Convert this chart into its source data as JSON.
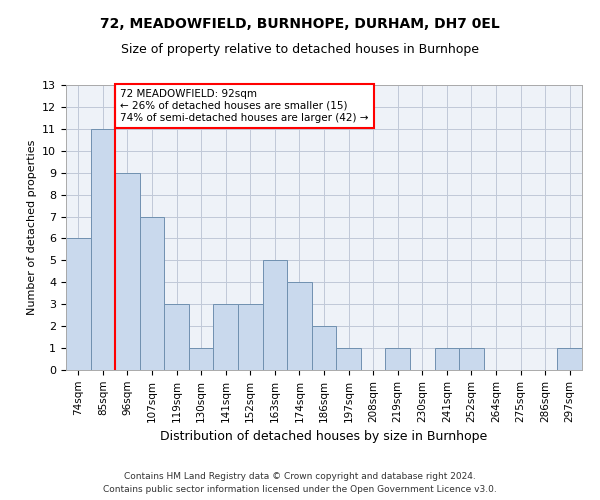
{
  "title1": "72, MEADOWFIELD, BURNHOPE, DURHAM, DH7 0EL",
  "title2": "Size of property relative to detached houses in Burnhope",
  "xlabel": "Distribution of detached houses by size in Burnhope",
  "ylabel": "Number of detached properties",
  "categories": [
    "74sqm",
    "85sqm",
    "96sqm",
    "107sqm",
    "119sqm",
    "130sqm",
    "141sqm",
    "152sqm",
    "163sqm",
    "174sqm",
    "186sqm",
    "197sqm",
    "208sqm",
    "219sqm",
    "230sqm",
    "241sqm",
    "252sqm",
    "264sqm",
    "275sqm",
    "286sqm",
    "297sqm"
  ],
  "values": [
    6,
    11,
    9,
    7,
    3,
    1,
    3,
    3,
    5,
    4,
    2,
    1,
    0,
    1,
    0,
    1,
    1,
    0,
    0,
    0,
    1
  ],
  "bar_color": "#c9d9ed",
  "bar_edge_color": "#7090b0",
  "red_line_x": 1.5,
  "annotation_text": "72 MEADOWFIELD: 92sqm\n← 26% of detached houses are smaller (15)\n74% of semi-detached houses are larger (42) →",
  "footer1": "Contains HM Land Registry data © Crown copyright and database right 2024.",
  "footer2": "Contains public sector information licensed under the Open Government Licence v3.0.",
  "ylim": [
    0,
    13
  ],
  "yticks": [
    0,
    1,
    2,
    3,
    4,
    5,
    6,
    7,
    8,
    9,
    10,
    11,
    12,
    13
  ],
  "grid_color": "#c0c8d8",
  "background_color": "#eef2f8",
  "title1_fontsize": 10,
  "title2_fontsize": 9,
  "ylabel_fontsize": 8,
  "xlabel_fontsize": 9,
  "tick_fontsize": 7.5,
  "ytick_fontsize": 8,
  "ann_fontsize": 7.5,
  "footer_fontsize": 6.5
}
